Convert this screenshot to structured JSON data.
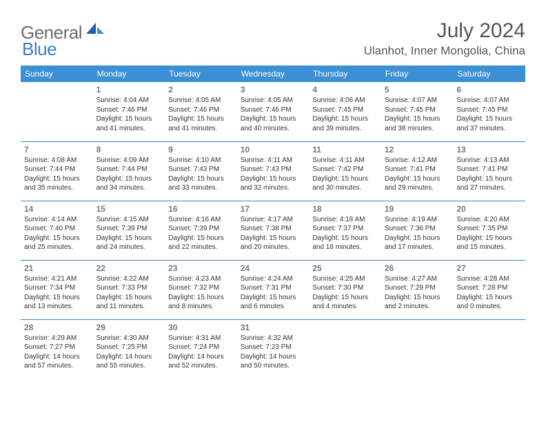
{
  "brand": {
    "part1": "General",
    "part2": "Blue"
  },
  "colors": {
    "header_bg": "#3b8fd4",
    "header_text": "#ffffff",
    "rule": "#3b7fc4",
    "logo_gray": "#6b6b6b",
    "logo_blue": "#3b7fc4",
    "daynum": "#777777",
    "body_text": "#333333",
    "title_text": "#555555"
  },
  "title": "July 2024",
  "location": "Ulanhot, Inner Mongolia, China",
  "weekdays": [
    "Sunday",
    "Monday",
    "Tuesday",
    "Wednesday",
    "Thursday",
    "Friday",
    "Saturday"
  ],
  "weeks": [
    [
      null,
      {
        "n": "1",
        "sunrise": "Sunrise: 4:04 AM",
        "sunset": "Sunset: 7:46 PM",
        "day": "Daylight: 15 hours and 41 minutes."
      },
      {
        "n": "2",
        "sunrise": "Sunrise: 4:05 AM",
        "sunset": "Sunset: 7:46 PM",
        "day": "Daylight: 15 hours and 41 minutes."
      },
      {
        "n": "3",
        "sunrise": "Sunrise: 4:05 AM",
        "sunset": "Sunset: 7:46 PM",
        "day": "Daylight: 15 hours and 40 minutes."
      },
      {
        "n": "4",
        "sunrise": "Sunrise: 4:06 AM",
        "sunset": "Sunset: 7:45 PM",
        "day": "Daylight: 15 hours and 39 minutes."
      },
      {
        "n": "5",
        "sunrise": "Sunrise: 4:07 AM",
        "sunset": "Sunset: 7:45 PM",
        "day": "Daylight: 15 hours and 38 minutes."
      },
      {
        "n": "6",
        "sunrise": "Sunrise: 4:07 AM",
        "sunset": "Sunset: 7:45 PM",
        "day": "Daylight: 15 hours and 37 minutes."
      }
    ],
    [
      {
        "n": "7",
        "sunrise": "Sunrise: 4:08 AM",
        "sunset": "Sunset: 7:44 PM",
        "day": "Daylight: 15 hours and 35 minutes."
      },
      {
        "n": "8",
        "sunrise": "Sunrise: 4:09 AM",
        "sunset": "Sunset: 7:44 PM",
        "day": "Daylight: 15 hours and 34 minutes."
      },
      {
        "n": "9",
        "sunrise": "Sunrise: 4:10 AM",
        "sunset": "Sunset: 7:43 PM",
        "day": "Daylight: 15 hours and 33 minutes."
      },
      {
        "n": "10",
        "sunrise": "Sunrise: 4:11 AM",
        "sunset": "Sunset: 7:43 PM",
        "day": "Daylight: 15 hours and 32 minutes."
      },
      {
        "n": "11",
        "sunrise": "Sunrise: 4:11 AM",
        "sunset": "Sunset: 7:42 PM",
        "day": "Daylight: 15 hours and 30 minutes."
      },
      {
        "n": "12",
        "sunrise": "Sunrise: 4:12 AM",
        "sunset": "Sunset: 7:41 PM",
        "day": "Daylight: 15 hours and 29 minutes."
      },
      {
        "n": "13",
        "sunrise": "Sunrise: 4:13 AM",
        "sunset": "Sunset: 7:41 PM",
        "day": "Daylight: 15 hours and 27 minutes."
      }
    ],
    [
      {
        "n": "14",
        "sunrise": "Sunrise: 4:14 AM",
        "sunset": "Sunset: 7:40 PM",
        "day": "Daylight: 15 hours and 25 minutes."
      },
      {
        "n": "15",
        "sunrise": "Sunrise: 4:15 AM",
        "sunset": "Sunset: 7:39 PM",
        "day": "Daylight: 15 hours and 24 minutes."
      },
      {
        "n": "16",
        "sunrise": "Sunrise: 4:16 AM",
        "sunset": "Sunset: 7:39 PM",
        "day": "Daylight: 15 hours and 22 minutes."
      },
      {
        "n": "17",
        "sunrise": "Sunrise: 4:17 AM",
        "sunset": "Sunset: 7:38 PM",
        "day": "Daylight: 15 hours and 20 minutes."
      },
      {
        "n": "18",
        "sunrise": "Sunrise: 4:18 AM",
        "sunset": "Sunset: 7:37 PM",
        "day": "Daylight: 15 hours and 18 minutes."
      },
      {
        "n": "19",
        "sunrise": "Sunrise: 4:19 AM",
        "sunset": "Sunset: 7:36 PM",
        "day": "Daylight: 15 hours and 17 minutes."
      },
      {
        "n": "20",
        "sunrise": "Sunrise: 4:20 AM",
        "sunset": "Sunset: 7:35 PM",
        "day": "Daylight: 15 hours and 15 minutes."
      }
    ],
    [
      {
        "n": "21",
        "sunrise": "Sunrise: 4:21 AM",
        "sunset": "Sunset: 7:34 PM",
        "day": "Daylight: 15 hours and 13 minutes."
      },
      {
        "n": "22",
        "sunrise": "Sunrise: 4:22 AM",
        "sunset": "Sunset: 7:33 PM",
        "day": "Daylight: 15 hours and 11 minutes."
      },
      {
        "n": "23",
        "sunrise": "Sunrise: 4:23 AM",
        "sunset": "Sunset: 7:32 PM",
        "day": "Daylight: 15 hours and 8 minutes."
      },
      {
        "n": "24",
        "sunrise": "Sunrise: 4:24 AM",
        "sunset": "Sunset: 7:31 PM",
        "day": "Daylight: 15 hours and 6 minutes."
      },
      {
        "n": "25",
        "sunrise": "Sunrise: 4:25 AM",
        "sunset": "Sunset: 7:30 PM",
        "day": "Daylight: 15 hours and 4 minutes."
      },
      {
        "n": "26",
        "sunrise": "Sunrise: 4:27 AM",
        "sunset": "Sunset: 7:29 PM",
        "day": "Daylight: 15 hours and 2 minutes."
      },
      {
        "n": "27",
        "sunrise": "Sunrise: 4:28 AM",
        "sunset": "Sunset: 7:28 PM",
        "day": "Daylight: 15 hours and 0 minutes."
      }
    ],
    [
      {
        "n": "28",
        "sunrise": "Sunrise: 4:29 AM",
        "sunset": "Sunset: 7:27 PM",
        "day": "Daylight: 14 hours and 57 minutes."
      },
      {
        "n": "29",
        "sunrise": "Sunrise: 4:30 AM",
        "sunset": "Sunset: 7:25 PM",
        "day": "Daylight: 14 hours and 55 minutes."
      },
      {
        "n": "30",
        "sunrise": "Sunrise: 4:31 AM",
        "sunset": "Sunset: 7:24 PM",
        "day": "Daylight: 14 hours and 52 minutes."
      },
      {
        "n": "31",
        "sunrise": "Sunrise: 4:32 AM",
        "sunset": "Sunset: 7:23 PM",
        "day": "Daylight: 14 hours and 50 minutes."
      },
      null,
      null,
      null
    ]
  ]
}
